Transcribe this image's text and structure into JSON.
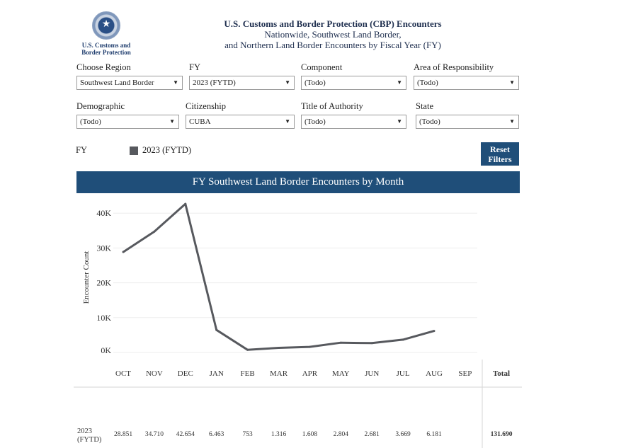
{
  "header": {
    "logo_text_line1": "U.S. Customs and",
    "logo_text_line2": "Border Protection",
    "title_line1": "U.S. Customs and Border Protection (CBP) Encounters",
    "title_line2": "Nationwide, Southwest Land Border,",
    "title_line3": "and Northern Land Border Encounters by Fiscal Year (FY)"
  },
  "filters": [
    {
      "label": "Choose Region",
      "value": "Southwest Land Border"
    },
    {
      "label": "FY",
      "value": "2023 (FYTD)"
    },
    {
      "label": "Component",
      "value": "(Todo)"
    },
    {
      "label": "Area of Responsibility",
      "value": "(Todo)"
    },
    {
      "label": "Demographic",
      "value": "(Todo)"
    },
    {
      "label": "Citizenship",
      "value": "CUBA"
    },
    {
      "label": "Title of Authority",
      "value": "(Todo)"
    },
    {
      "label": "State",
      "value": "(Todo)"
    }
  ],
  "legend": {
    "title": "FY",
    "item": "2023 (FYTD)",
    "color": "#57595e"
  },
  "reset_button": {
    "line1": "Reset",
    "line2": "Filters"
  },
  "chart_banner": "FY Southwest Land Border Encounters by Month",
  "colors": {
    "banner": "#1f4e79",
    "line": "#57595e"
  },
  "chart_data": {
    "type": "line",
    "title": "FY Southwest Land Border Encounters by Month",
    "xlabel": "",
    "ylabel": "Encounter Count",
    "categories": [
      "OCT",
      "NOV",
      "DEC",
      "JAN",
      "FEB",
      "MAR",
      "APR",
      "MAY",
      "JUN",
      "JUL",
      "AUG",
      "SEP"
    ],
    "series": [
      {
        "name": "2023 (FYTD)",
        "values": [
          28851,
          34710,
          42654,
          6463,
          753,
          1316,
          1608,
          2804,
          2681,
          3669,
          6181,
          null
        ]
      }
    ],
    "yticks": [
      "0K",
      "10K",
      "20K",
      "30K",
      "40K"
    ],
    "ylim": [
      0,
      43000
    ],
    "grid": true,
    "legend": "top-left",
    "table": {
      "row_label": "2023 (FYTD)",
      "cells": [
        "28.851",
        "34.710",
        "42.654",
        "6.463",
        "753",
        "1.316",
        "1.608",
        "2.804",
        "2.681",
        "3.669",
        "6.181",
        ""
      ],
      "total_header": "Total",
      "total": "131.690"
    }
  }
}
